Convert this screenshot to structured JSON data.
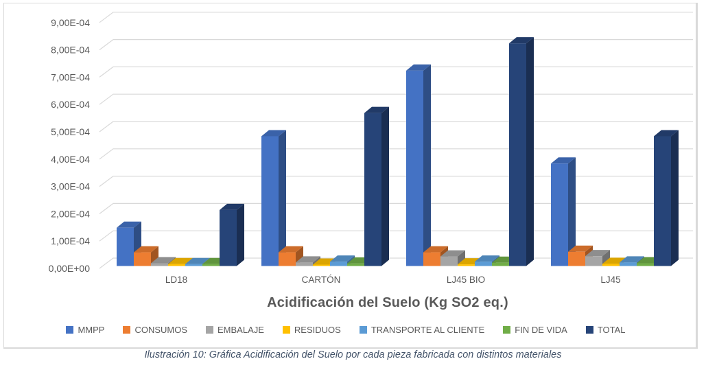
{
  "figure": {
    "axis_title": "Acidificación del Suelo (Kg SO2 eq.)",
    "caption": "Ilustración 10: Gráfica Acidificación del Suelo por cada pieza fabricada con distintos materiales"
  },
  "colors": {
    "grid": "#D9D9D9",
    "border": "#D9D9D9",
    "axis_text": "#595959",
    "title_text": "#595959",
    "caption_text": "#44546A",
    "background": "#FFFFFF"
  },
  "chart_data": {
    "type": "bar",
    "style": "3d-clustered-column",
    "title": "Acidificación del Suelo (Kg SO2 eq.)",
    "xlabel": "",
    "ylabel": "",
    "grid": true,
    "legend_position": "bottom",
    "categories": [
      "LD18",
      "CARTÓN",
      "LJ45 BIO",
      "LJ45"
    ],
    "series": [
      {
        "name": "MMPP",
        "color": "#4472C4",
        "values": [
          0.00014,
          0.000475,
          0.000715,
          0.000375
        ]
      },
      {
        "name": "CONSUMOS",
        "color": "#ED7D31",
        "values": [
          5e-05,
          5e-05,
          5e-05,
          5.2e-05
        ]
      },
      {
        "name": "EMBALAJE",
        "color": "#A5A5A5",
        "values": [
          1e-05,
          1.3e-05,
          3.5e-05,
          3.6e-05
        ]
      },
      {
        "name": "RESIDUOS",
        "color": "#FFC000",
        "values": [
          7e-06,
          5e-06,
          6e-06,
          8e-06
        ]
      },
      {
        "name": "TRANSPORTE AL CLIENTE",
        "color": "#5B9BD5",
        "values": [
          7e-06,
          1.6e-05,
          1.6e-05,
          1.3e-05
        ]
      },
      {
        "name": "FIN DE VIDA",
        "color": "#70AD47",
        "values": [
          7e-06,
          9e-06,
          1.2e-05,
          1e-05
        ]
      },
      {
        "name": "TOTAL",
        "color": "#264478",
        "values": [
          0.000205,
          0.00056,
          0.000815,
          0.000475
        ]
      }
    ],
    "y_axis": {
      "min": 0,
      "max": 0.0009,
      "step": 0.0001,
      "tick_labels": [
        "0,00E+00",
        "1,00E-04",
        "2,00E-04",
        "3,00E-04",
        "4,00E-04",
        "5,00E-04",
        "6,00E-04",
        "7,00E-04",
        "8,00E-04",
        "9,00E-04"
      ]
    }
  }
}
